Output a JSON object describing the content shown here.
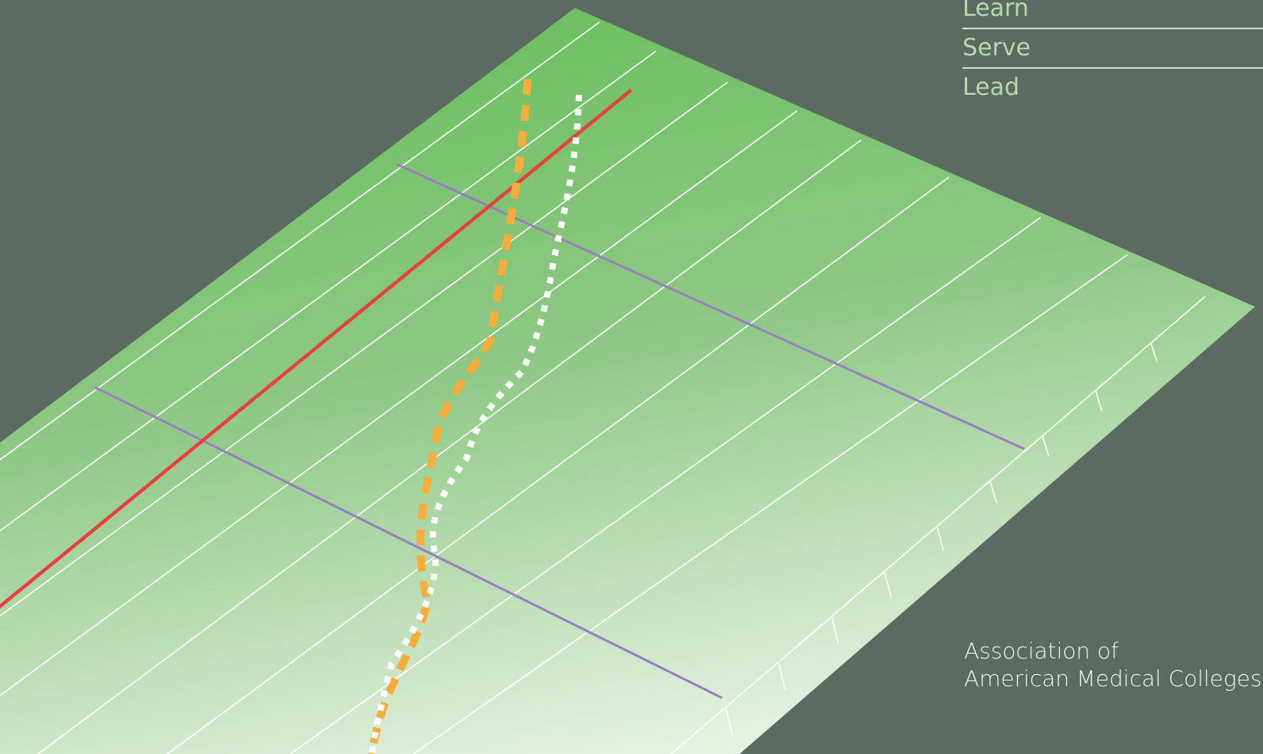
{
  "motto": {
    "items": [
      "Learn",
      "Serve",
      "Lead"
    ]
  },
  "organization": {
    "line1": "Association of",
    "line2": "American Medical Colleges"
  },
  "colors": {
    "background": "#5b6b62",
    "field_top": "#6fbf63",
    "field_bottom": "#e8f2e4",
    "grid_lines": "#ffffff",
    "red_line": "#e8403f",
    "purple_lines": "#9a7fc0",
    "orange_dashes": "#f6ad3c",
    "white_dashes": "#ffffff",
    "motto_text": "#b5d9ad",
    "org_text": "#eef3ee"
  }
}
